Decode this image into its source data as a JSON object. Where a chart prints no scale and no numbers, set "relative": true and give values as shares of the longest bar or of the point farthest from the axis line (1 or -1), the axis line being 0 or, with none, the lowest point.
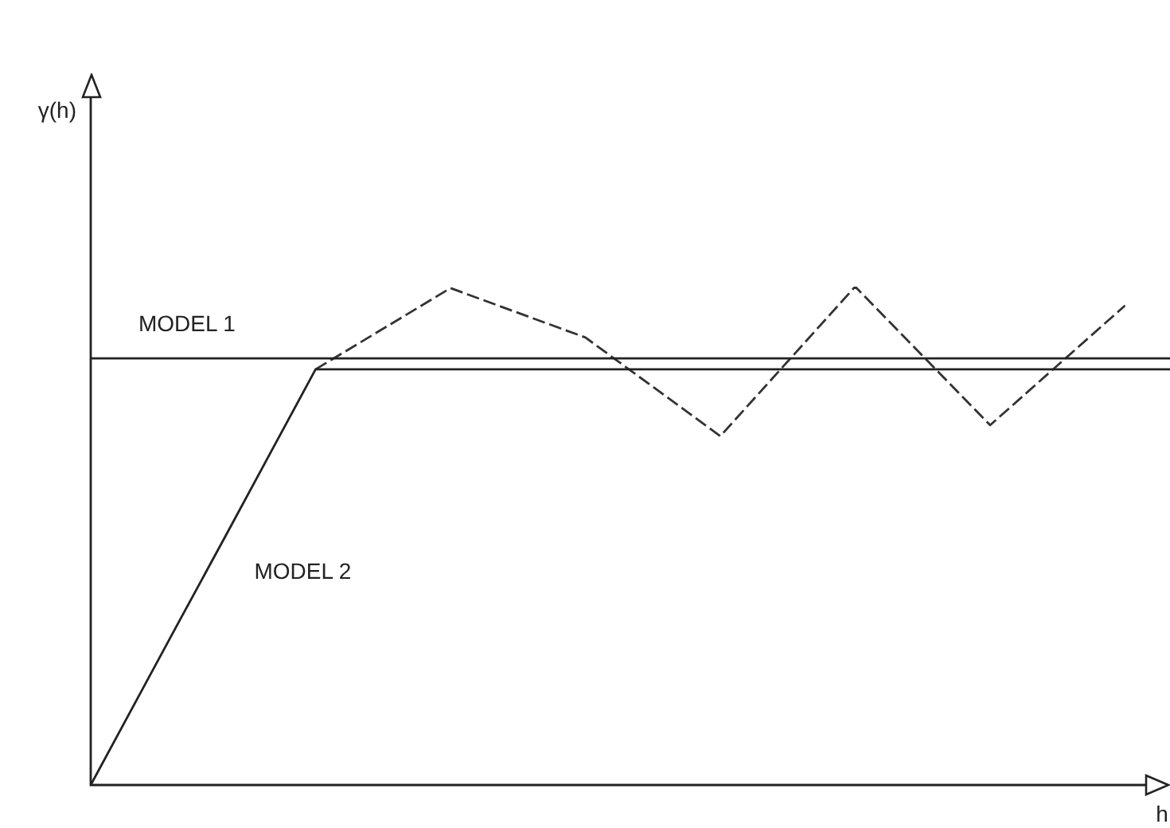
{
  "chart_data": {
    "type": "line",
    "relative": true,
    "xlabel": "h",
    "annotations": [
      "γ(h)"
    ],
    "marker": "none",
    "categories": [
      null,
      null,
      null,
      null,
      null,
      null,
      null,
      null,
      null,
      null,
      null,
      null,
      null,
      null,
      null,
      null,
      null,
      null,
      null,
      null,
      null,
      null,
      null,
      null,
      null
    ],
    "series": [
      {
        "name": "MODEL 1",
        "color": "#222222",
        "values": [
          0.856,
          0.856,
          0.856,
          0.856,
          0.856,
          0.856,
          0.856,
          0.856,
          0.856,
          0.856,
          0.856,
          0.856,
          0.856,
          0.856,
          0.856,
          0.856,
          0.856,
          0.856,
          0.856,
          0.856,
          0.856,
          0.856,
          0.856,
          0.856,
          0.856
        ],
        "line_style": "solid"
      },
      {
        "name": "MODEL 2",
        "color": "#222222",
        "values": [
          0,
          0.167,
          0.334,
          0.5,
          0.667,
          0.834,
          0.834,
          0.834,
          0.834,
          0.834,
          0.834,
          0.834,
          0.834,
          0.834,
          0.834,
          0.834,
          0.834,
          0.834,
          0.834,
          0.834,
          0.834,
          0.834,
          0.834,
          0.834,
          0.834
        ],
        "line_style": "solid"
      },
      {
        "color": "#333333",
        "values": [
          null,
          null,
          null,
          null,
          null,
          0.834,
          null,
          null,
          0.997,
          null,
          null,
          0.898,
          null,
          null,
          0.7,
          null,
          null,
          1,
          null,
          null,
          0.722,
          null,
          null,
          0.962,
          null
        ],
        "line_style": "dashed"
      }
    ]
  }
}
